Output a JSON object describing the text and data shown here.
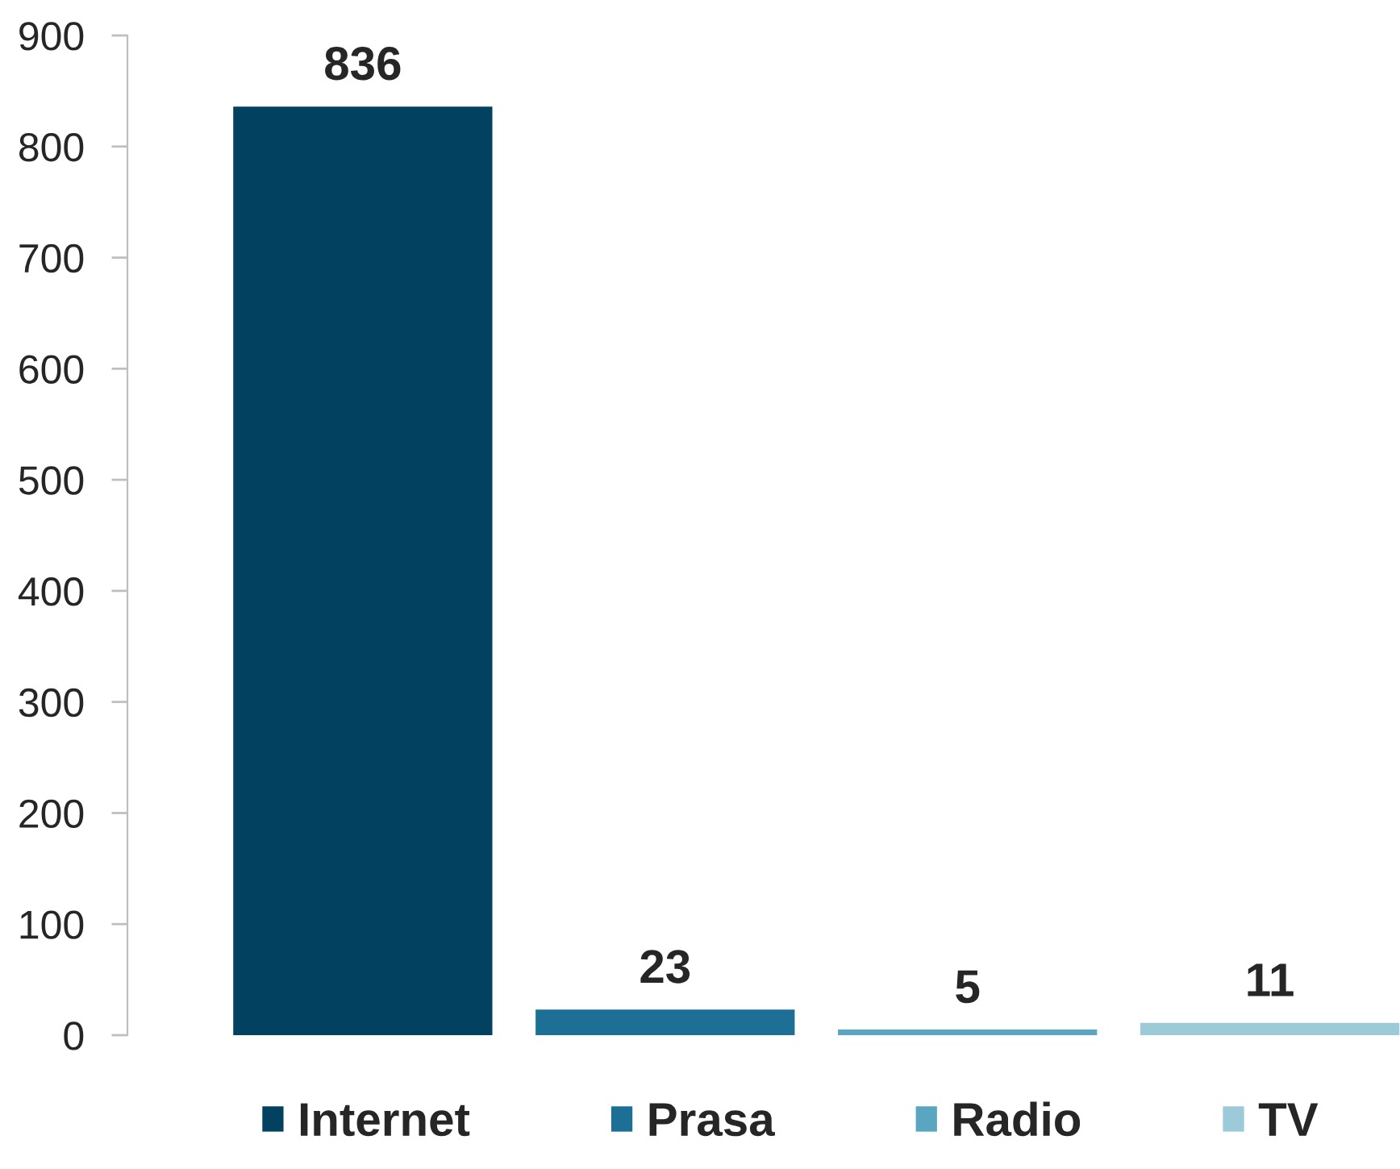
{
  "chart_data": {
    "type": "bar",
    "categories": [
      null
    ],
    "series": [
      {
        "name": "Internet",
        "color": "#02415f",
        "values": [
          836
        ]
      },
      {
        "name": "Prasa",
        "color": "#1d6f95",
        "values": [
          23
        ]
      },
      {
        "name": "Radio",
        "color": "#5aa5c1",
        "values": [
          5
        ]
      },
      {
        "name": "TV",
        "color": "#9ccad9",
        "values": [
          11
        ]
      }
    ],
    "ylim": [
      0,
      900
    ],
    "yticks": [
      0,
      100,
      200,
      300,
      400,
      500,
      600,
      700,
      800,
      900
    ],
    "data_labels": true,
    "legend": "bottom",
    "tick_labels": "y"
  }
}
